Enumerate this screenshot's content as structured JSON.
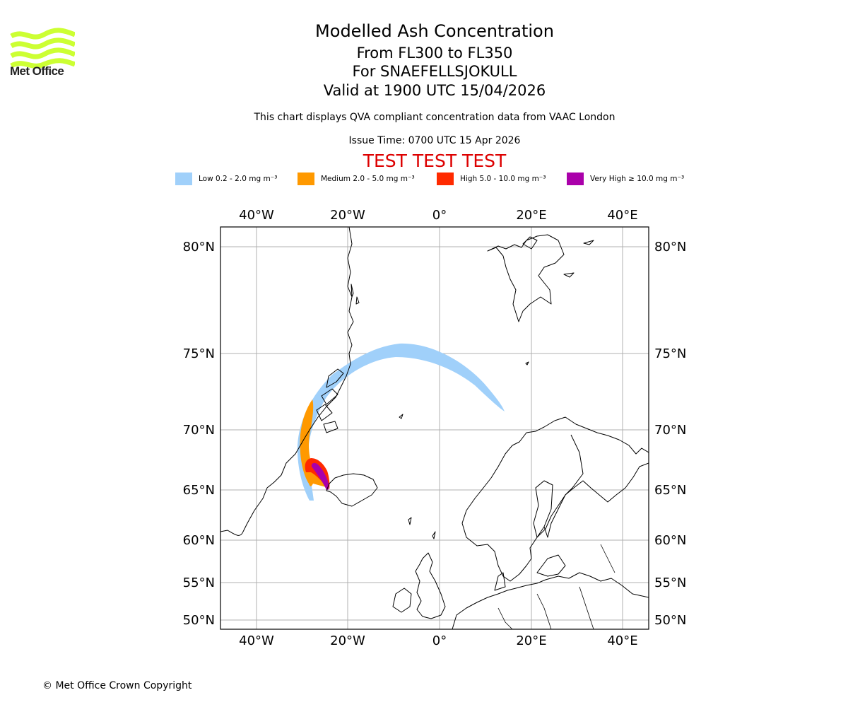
{
  "branding": {
    "logo_text": "Met Office",
    "logo_color": "#ccff33"
  },
  "header": {
    "title": "Modelled Ash Concentration",
    "levels": "From FL300 to FL350",
    "volcano": "For SNAEFELLSJOKULL",
    "valid": "Valid at 1900 UTC 15/04/2026",
    "description": "This chart displays QVA compliant concentration data from VAAC London",
    "issue_time": "Issue Time: 0700 UTC 15 Apr 2026",
    "test_banner": "TEST TEST TEST",
    "test_color": "#dd0000"
  },
  "legend": [
    {
      "label": "Low 0.2 - 2.0 mg m⁻³",
      "color": "#a0d0fa"
    },
    {
      "label": "Medium 2.0 - 5.0 mg m⁻³",
      "color": "#ff9900"
    },
    {
      "label": "High 5.0 - 10.0 mg m⁻³",
      "color": "#ff2a00"
    },
    {
      "label": "Very High  ≥  10.0 mg m⁻³",
      "color": "#aa00aa"
    }
  ],
  "map": {
    "lon_labels": [
      "40°W",
      "20°W",
      "0°",
      "20°E",
      "40°E"
    ],
    "lat_labels": [
      "80°N",
      "75°N",
      "70°N",
      "65°N",
      "60°N",
      "55°N",
      "50°N"
    ]
  },
  "footer": {
    "copyright": "© Met Office Crown Copyright"
  }
}
